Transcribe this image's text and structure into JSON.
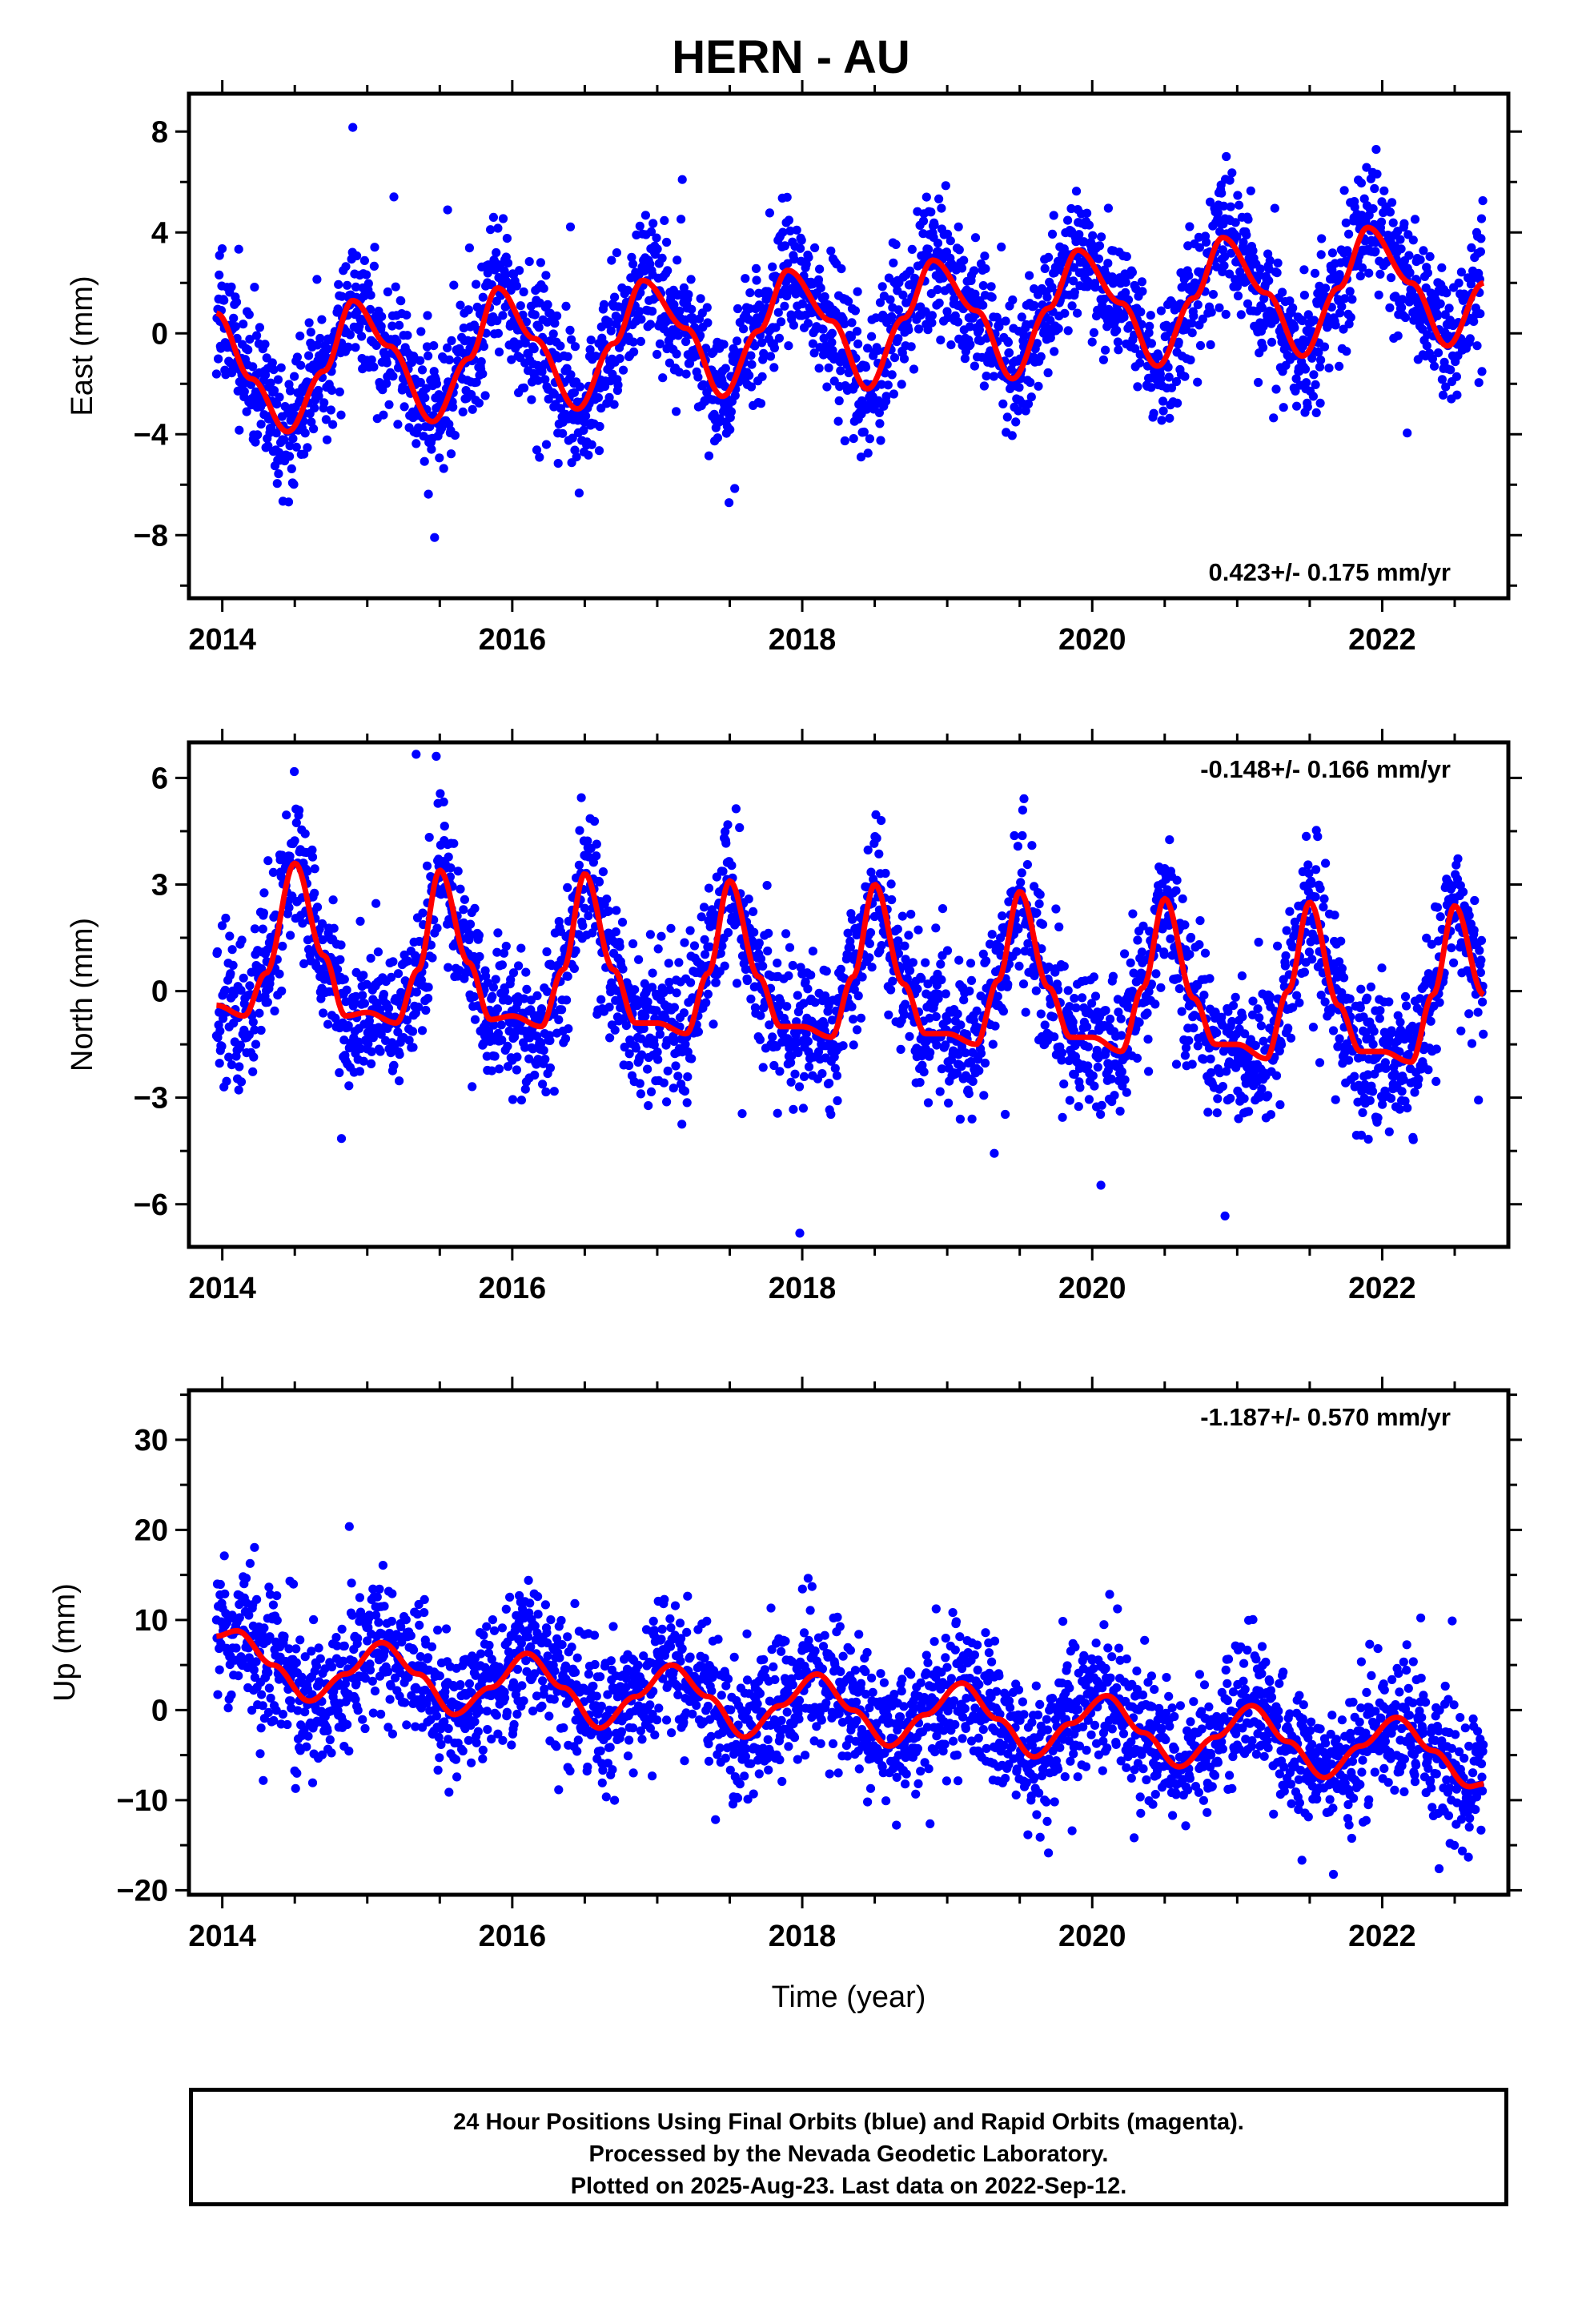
{
  "title": "HERN - AU",
  "chart_data": [
    {
      "type": "scatter",
      "panel": "east",
      "ylabel": "East (mm)",
      "xlim": [
        2013.77,
        2022.87
      ],
      "ylim": [
        -10.5,
        9.5
      ],
      "xticks": [
        2014,
        2016,
        2018,
        2020,
        2022
      ],
      "yticks": [
        -8,
        -4,
        0,
        4,
        8
      ],
      "rate_label": "0.423+/- 0.175 mm/yr",
      "series": [
        {
          "name": "Final Orbits",
          "color": "#0000ff",
          "marker": "dot",
          "x_range": [
            2013.96,
            2022.7
          ],
          "approx_model_with_scatter_sd": 1.3
        },
        {
          "color": "#ff0000",
          "marker": "line",
          "x": [
            2013.96,
            2014.2,
            2014.45,
            2014.7,
            2014.9,
            2015.15,
            2015.45,
            2015.7,
            2015.9,
            2016.15,
            2016.45,
            2016.7,
            2016.9,
            2017.2,
            2017.45,
            2017.7,
            2017.9,
            2018.2,
            2018.45,
            2018.7,
            2018.9,
            2019.2,
            2019.45,
            2019.7,
            2019.9,
            2020.2,
            2020.45,
            2020.7,
            2020.9,
            2021.2,
            2021.45,
            2021.7,
            2021.9,
            2022.2,
            2022.45,
            2022.7
          ],
          "y": [
            0.8,
            -1.8,
            -3.9,
            -1.5,
            1.3,
            -0.5,
            -3.5,
            -1.0,
            1.8,
            -0.2,
            -3.0,
            -0.4,
            2.1,
            0.2,
            -2.5,
            0.1,
            2.5,
            0.5,
            -2.2,
            0.6,
            2.9,
            0.9,
            -1.8,
            1.0,
            3.3,
            1.2,
            -1.3,
            1.4,
            3.8,
            1.6,
            -0.9,
            1.8,
            4.2,
            2.0,
            -0.5,
            2.0
          ]
        }
      ]
    },
    {
      "type": "scatter",
      "panel": "north",
      "ylabel": "North (mm)",
      "xlim": [
        2013.77,
        2022.87
      ],
      "ylim": [
        -7.2,
        7.0
      ],
      "xticks": [
        2014,
        2016,
        2018,
        2020,
        2022
      ],
      "yticks": [
        -6,
        -3,
        0,
        3,
        6
      ],
      "rate_label": "-0.148+/- 0.166 mm/yr",
      "series": [
        {
          "name": "Final Orbits",
          "color": "#0000ff",
          "marker": "dot",
          "x_range": [
            2013.96,
            2022.7
          ],
          "approx_model_with_scatter_sd": 1.0
        },
        {
          "color": "#ff0000",
          "marker": "line",
          "x": [
            2013.96,
            2014.15,
            2014.3,
            2014.5,
            2014.7,
            2014.85,
            2015.0,
            2015.2,
            2015.35,
            2015.5,
            2015.7,
            2015.85,
            2016.0,
            2016.2,
            2016.35,
            2016.5,
            2016.7,
            2016.85,
            2017.0,
            2017.2,
            2017.35,
            2017.5,
            2017.7,
            2017.85,
            2018.0,
            2018.2,
            2018.35,
            2018.5,
            2018.7,
            2018.85,
            2019.0,
            2019.2,
            2019.35,
            2019.5,
            2019.7,
            2019.85,
            2020.0,
            2020.2,
            2020.35,
            2020.5,
            2020.7,
            2020.85,
            2021.0,
            2021.2,
            2021.35,
            2021.5,
            2021.7,
            2021.85,
            2022.0,
            2022.2,
            2022.35,
            2022.5,
            2022.7
          ],
          "y": [
            -0.4,
            -0.7,
            0.5,
            3.6,
            1.0,
            -0.7,
            -0.6,
            -0.9,
            0.6,
            3.4,
            0.8,
            -0.8,
            -0.7,
            -1.0,
            0.6,
            3.3,
            0.6,
            -0.9,
            -0.9,
            -1.2,
            0.5,
            3.1,
            0.4,
            -1.0,
            -1.0,
            -1.3,
            0.4,
            3.0,
            0.2,
            -1.2,
            -1.2,
            -1.5,
            0.3,
            2.8,
            0.1,
            -1.3,
            -1.3,
            -1.7,
            0.1,
            2.6,
            -0.2,
            -1.5,
            -1.5,
            -1.9,
            0.0,
            2.5,
            -0.4,
            -1.7,
            -1.7,
            -2.0,
            -0.1,
            2.4,
            -0.1
          ]
        }
      ]
    },
    {
      "type": "scatter",
      "panel": "up",
      "ylabel": "Up (mm)",
      "xlabel": "Time (year)",
      "xlim": [
        2013.77,
        2022.87
      ],
      "ylim": [
        -20.5,
        35.5
      ],
      "xticks": [
        2014,
        2016,
        2018,
        2020,
        2022
      ],
      "yticks": [
        -20,
        -10,
        0,
        10,
        20,
        30
      ],
      "rate_label": "-1.187+/- 0.570 mm/yr",
      "series": [
        {
          "name": "Final Orbits",
          "color": "#0000ff",
          "marker": "dot",
          "x_range": [
            2013.96,
            2022.7
          ],
          "approx_model_with_scatter_sd": 3.8
        },
        {
          "color": "#ff0000",
          "marker": "line",
          "x": [
            2013.96,
            2014.1,
            2014.35,
            2014.6,
            2014.85,
            2015.1,
            2015.35,
            2015.6,
            2015.85,
            2016.1,
            2016.35,
            2016.6,
            2016.85,
            2017.1,
            2017.35,
            2017.6,
            2017.85,
            2018.1,
            2018.35,
            2018.6,
            2018.85,
            2019.1,
            2019.35,
            2019.6,
            2019.85,
            2020.1,
            2020.35,
            2020.6,
            2020.85,
            2021.1,
            2021.35,
            2021.6,
            2021.85,
            2022.1,
            2022.35,
            2022.6,
            2022.7
          ],
          "y": [
            8.2,
            8.8,
            5.0,
            1.0,
            4.0,
            7.5,
            4.0,
            -0.5,
            2.5,
            6.3,
            2.5,
            -2.0,
            1.5,
            5.0,
            1.5,
            -3.0,
            0.5,
            4.0,
            0.0,
            -4.0,
            -0.5,
            3.0,
            -1.0,
            -5.2,
            -1.5,
            1.6,
            -2.5,
            -6.3,
            -3.0,
            0.5,
            -3.5,
            -7.5,
            -4.0,
            -0.8,
            -4.5,
            -8.5,
            -8.2
          ]
        }
      ]
    }
  ],
  "footer": {
    "line1": "24 Hour Positions Using Final Orbits (blue) and Rapid Orbits (magenta).",
    "line2": "Processed by the Nevada Geodetic Laboratory.",
    "line3": "Plotted on 2025-Aug-23. Last data on 2022-Sep-12."
  }
}
